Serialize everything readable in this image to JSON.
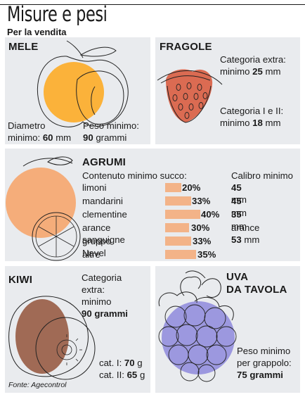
{
  "header": {
    "title": "Misure e pesi",
    "subtitle": "Per la vendita"
  },
  "mele": {
    "title": "MELE",
    "diametro_label_1": "Diametro",
    "diametro_label_2": "minimo:",
    "diametro_value": "60",
    "diametro_unit": "mm",
    "peso_label": "Peso minimo:",
    "peso_value": "90",
    "peso_unit": "grammi"
  },
  "fragole": {
    "title": "FRAGOLE",
    "cat_extra_label": "Categoria extra:",
    "cat_extra_min": "minimo",
    "cat_extra_value": "25",
    "cat_extra_unit": "mm",
    "cat_12_label": "Categoria I e II:",
    "cat_12_min": "minimo",
    "cat_12_value": "18",
    "cat_12_unit": "mm"
  },
  "agrumi": {
    "title": "AGRUMI",
    "succo_header": "Contenuto minimo succo:",
    "calibro_header": "Calibro minimo",
    "rows": [
      {
        "name": "limoni",
        "percent": "20%",
        "fraction": 0.2,
        "calibro_value": "45",
        "calibro_unit": "mm",
        "calibro_prefix": ""
      },
      {
        "name": "mandarini",
        "percent": "33%",
        "fraction": 0.33,
        "calibro_value": "45",
        "calibro_unit": "mm",
        "calibro_prefix": ""
      },
      {
        "name": "clementine",
        "percent": "40%",
        "fraction": 0.4,
        "calibro_value": "35",
        "calibro_unit": "mm",
        "calibro_prefix": ""
      },
      {
        "name": "arance sanguigne",
        "percent": "30%",
        "fraction": 0.3,
        "calibro_value": "53",
        "calibro_unit": "mm",
        "calibro_prefix": "arance"
      },
      {
        "name": "gruppo Navel",
        "percent": "33%",
        "fraction": 0.33
      },
      {
        "name": "altre",
        "percent": "35%",
        "fraction": 0.35
      }
    ]
  },
  "kiwi": {
    "title": "KIWI",
    "cat_label_1": "Categoria",
    "cat_label_2": "extra:",
    "cat_label_3": "minimo",
    "cat_value": "90 grammi",
    "cat1_label": "cat. I:",
    "cat1_value": "70",
    "cat1_unit": "g",
    "cat2_label": "cat. II:",
    "cat2_value": "65",
    "cat2_unit": "g"
  },
  "uva": {
    "title_1": "UVA",
    "title_2": "DA TAVOLA",
    "peso_label_1": "Peso minimo",
    "peso_label_2": "per grappolo:",
    "peso_value": "75 grammi"
  },
  "source": "Fonte: Agecontrol",
  "colors": {
    "panel": "#e9ebee",
    "apple": "#fbb23a",
    "strawberry": "#db6b52",
    "citrus": "#f5ad7a",
    "kiwi": "#a06a55",
    "grape": "#9c98df",
    "bar": "#f3b388"
  }
}
